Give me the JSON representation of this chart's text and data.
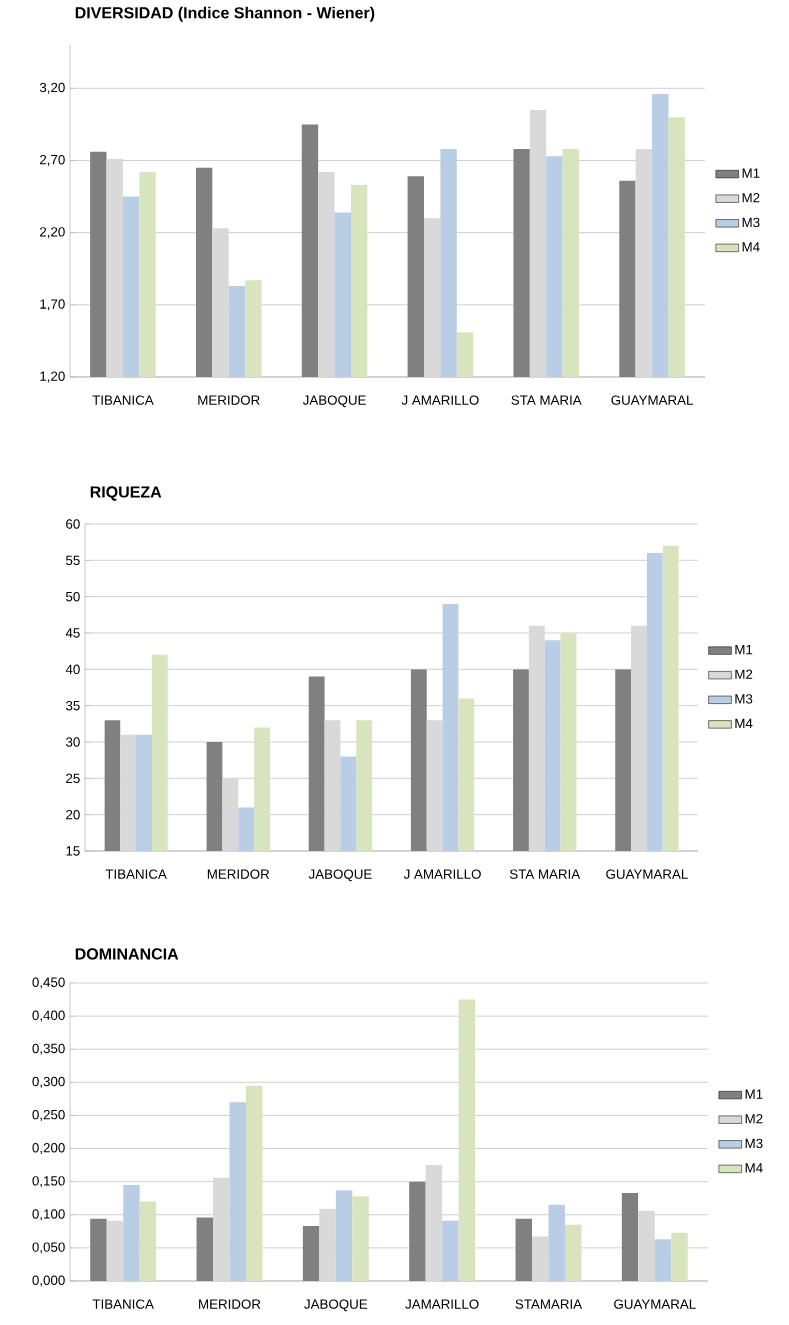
{
  "chart_data": [
    {
      "type": "bar",
      "title": "DIVERSIDAD (Indice Shannon - Wiener)",
      "categories": [
        "TIBANICA",
        "MERIDOR",
        "JABOQUE",
        "J AMARILLO",
        "STA MARIA",
        "GUAYMARAL"
      ],
      "series": [
        {
          "name": "M1",
          "color": "#808080",
          "values": [
            2.76,
            2.65,
            2.95,
            2.59,
            2.78,
            2.56
          ]
        },
        {
          "name": "M2",
          "color": "#d9d9d9",
          "values": [
            2.71,
            2.23,
            2.62,
            2.3,
            3.05,
            2.78
          ]
        },
        {
          "name": "M3",
          "color": "#b9cde5",
          "values": [
            2.45,
            1.83,
            2.34,
            2.78,
            2.73,
            3.16
          ]
        },
        {
          "name": "M4",
          "color": "#d7e4bd",
          "values": [
            2.62,
            1.87,
            2.53,
            1.51,
            2.78,
            3.0
          ]
        }
      ],
      "ylim": [
        1.2,
        3.5
      ],
      "yticks": [
        {
          "value": 1.2,
          "label": "1,20"
        },
        {
          "value": 1.7,
          "label": "1,70"
        },
        {
          "value": 2.2,
          "label": "2,20"
        },
        {
          "value": 2.7,
          "label": "2,70"
        },
        {
          "value": 3.2,
          "label": "3,20"
        }
      ],
      "grid": "y",
      "legend": "right"
    },
    {
      "type": "bar",
      "title": "RIQUEZA",
      "categories": [
        "TIBANICA",
        "MERIDOR",
        "JABOQUE",
        "J AMARILLO",
        "STA MARIA",
        "GUAYMARAL"
      ],
      "series": [
        {
          "name": "M1",
          "color": "#808080",
          "values": [
            33,
            30,
            39,
            40,
            40,
            40
          ]
        },
        {
          "name": "M2",
          "color": "#d9d9d9",
          "values": [
            31,
            25,
            33,
            33,
            46,
            46
          ]
        },
        {
          "name": "M3",
          "color": "#b9cde5",
          "values": [
            31,
            21,
            28,
            49,
            44,
            56
          ]
        },
        {
          "name": "M4",
          "color": "#d7e4bd",
          "values": [
            42,
            32,
            33,
            36,
            45,
            57
          ]
        }
      ],
      "ylim": [
        15,
        60
      ],
      "yticks": [
        15,
        20,
        25,
        30,
        35,
        40,
        45,
        50,
        55,
        60
      ],
      "grid": "y",
      "legend": "right"
    },
    {
      "type": "bar",
      "title": "DOMINANCIA",
      "categories": [
        "TIBANICA",
        "MERIDOR",
        "JABOQUE",
        "JAMARILLO",
        "STAMARIA",
        "GUAYMARAL"
      ],
      "series": [
        {
          "name": "M1",
          "color": "#808080",
          "values": [
            0.094,
            0.096,
            0.083,
            0.15,
            0.094,
            0.133
          ]
        },
        {
          "name": "M2",
          "color": "#d9d9d9",
          "values": [
            0.091,
            0.156,
            0.109,
            0.175,
            0.067,
            0.106
          ]
        },
        {
          "name": "M3",
          "color": "#b9cde5",
          "values": [
            0.145,
            0.27,
            0.137,
            0.091,
            0.115,
            0.063
          ]
        },
        {
          "name": "M4",
          "color": "#d7e4bd",
          "values": [
            0.12,
            0.295,
            0.128,
            0.425,
            0.085,
            0.073
          ]
        }
      ],
      "ylim": [
        0,
        0.45
      ],
      "yticks": [
        {
          "value": 0,
          "label": "0,000"
        },
        {
          "value": 0.05,
          "label": "0,050"
        },
        {
          "value": 0.1,
          "label": "0,100"
        },
        {
          "value": 0.15,
          "label": "0,150"
        },
        {
          "value": 0.2,
          "label": "0,200"
        },
        {
          "value": 0.25,
          "label": "0,250"
        },
        {
          "value": 0.3,
          "label": "0,300"
        },
        {
          "value": 0.35,
          "label": "0,350"
        },
        {
          "value": 0.4,
          "label": "0,400"
        },
        {
          "value": 0.45,
          "label": "0,450"
        }
      ],
      "grid": "y",
      "legend": "right"
    }
  ]
}
